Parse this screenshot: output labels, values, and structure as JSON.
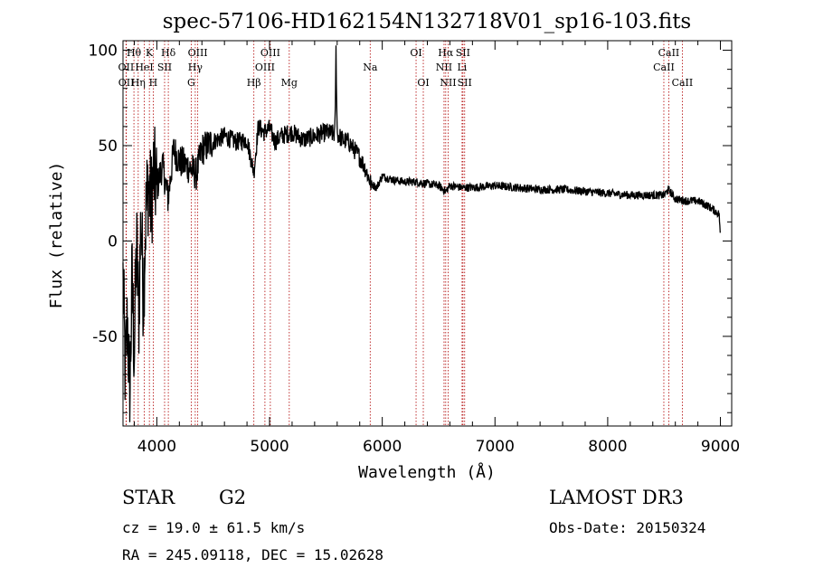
{
  "chart_data": {
    "type": "line",
    "title": "spec-57106-HD162154N132718V01_sp16-103.fits",
    "xlabel": "Wavelength (Å)",
    "ylabel": "Flux (relative)",
    "xlim": [
      3700,
      9100
    ],
    "ylim": [
      -97,
      105
    ],
    "x_ticks": [
      4000,
      5000,
      6000,
      7000,
      8000,
      9000
    ],
    "y_ticks": [
      -50,
      0,
      50,
      100
    ],
    "series": [
      {
        "name": "spectrum",
        "anchors_x": [
          3700,
          3720,
          3740,
          3760,
          3780,
          3800,
          3820,
          3840,
          3860,
          3880,
          3900,
          3920,
          3950,
          3970,
          4000,
          4050,
          4100,
          4150,
          4200,
          4250,
          4300,
          4350,
          4400,
          4500,
          4600,
          4700,
          4800,
          4861,
          4900,
          4950,
          5000,
          5050,
          5100,
          5200,
          5300,
          5400,
          5500,
          5580,
          5590,
          5600,
          5650,
          5700,
          5750,
          5800,
          5850,
          5900,
          5950,
          6000,
          6100,
          6200,
          6300,
          6400,
          6500,
          6563,
          6600,
          6700,
          6800,
          7000,
          7200,
          7400,
          7600,
          7800,
          8000,
          8200,
          8400,
          8500,
          8540,
          8600,
          8700,
          8800,
          8900,
          8990,
          9000
        ],
        "anchors_y": [
          -20,
          -70,
          -40,
          -85,
          -20,
          -60,
          0,
          -40,
          15,
          -30,
          10,
          30,
          20,
          35,
          28,
          40,
          22,
          48,
          42,
          40,
          38,
          35,
          48,
          52,
          55,
          52,
          53,
          36,
          60,
          57,
          59,
          52,
          55,
          57,
          53,
          55,
          57,
          56,
          100,
          56,
          53,
          52,
          48,
          44,
          38,
          30,
          28,
          34,
          32,
          31,
          31,
          30,
          29,
          26,
          29,
          28,
          28,
          29,
          28,
          27,
          27,
          26,
          25,
          24,
          24,
          24,
          27,
          22,
          21,
          21,
          18,
          14,
          0
        ]
      }
    ],
    "spectral_lines": [
      {
        "label": "Hθ",
        "x": 3797,
        "row": 0
      },
      {
        "label": "OII",
        "x": 3727,
        "row": 1
      },
      {
        "label": "OII",
        "x": 3729,
        "row": 2
      },
      {
        "label": "Hη",
        "x": 3835,
        "row": 2
      },
      {
        "label": "HeI",
        "x": 3889,
        "row": 1
      },
      {
        "label": "K",
        "x": 3934,
        "row": 0
      },
      {
        "label": "H",
        "x": 3968,
        "row": 2
      },
      {
        "label": "Hδ",
        "x": 4102,
        "row": 0
      },
      {
        "label": "SII",
        "x": 4069,
        "row": 1
      },
      {
        "label": "OIII",
        "x": 4363,
        "row": 0
      },
      {
        "label": "Hγ",
        "x": 4341,
        "row": 1
      },
      {
        "label": "G",
        "x": 4305,
        "row": 2
      },
      {
        "label": "Hβ",
        "x": 4861,
        "row": 2
      },
      {
        "label": "OIII",
        "x": 5007,
        "row": 0
      },
      {
        "label": "OIII",
        "x": 4959,
        "row": 1
      },
      {
        "label": "Mg",
        "x": 5175,
        "row": 2
      },
      {
        "label": "Na",
        "x": 5893,
        "row": 1
      },
      {
        "label": "OI",
        "x": 6300,
        "row": 0
      },
      {
        "label": "OI",
        "x": 6364,
        "row": 2
      },
      {
        "label": "Hα",
        "x": 6563,
        "row": 0
      },
      {
        "label": "SII",
        "x": 6716,
        "row": 0
      },
      {
        "label": "NII",
        "x": 6548,
        "row": 1
      },
      {
        "label": "Li",
        "x": 6708,
        "row": 1
      },
      {
        "label": "NII",
        "x": 6584,
        "row": 2
      },
      {
        "label": "SII",
        "x": 6731,
        "row": 2
      },
      {
        "label": "CaII",
        "x": 8542,
        "row": 0
      },
      {
        "label": "CaII",
        "x": 8498,
        "row": 1
      },
      {
        "label": "CaII",
        "x": 8662,
        "row": 2
      }
    ]
  },
  "info": {
    "object_class": "STAR",
    "subclass": "G2",
    "survey": "LAMOST DR3",
    "velocity": "cz = 19.0 ± 61.5 km/s",
    "obs_date": "Obs-Date: 20150324",
    "coords": "RA = 245.09118, DEC =  15.02628"
  }
}
